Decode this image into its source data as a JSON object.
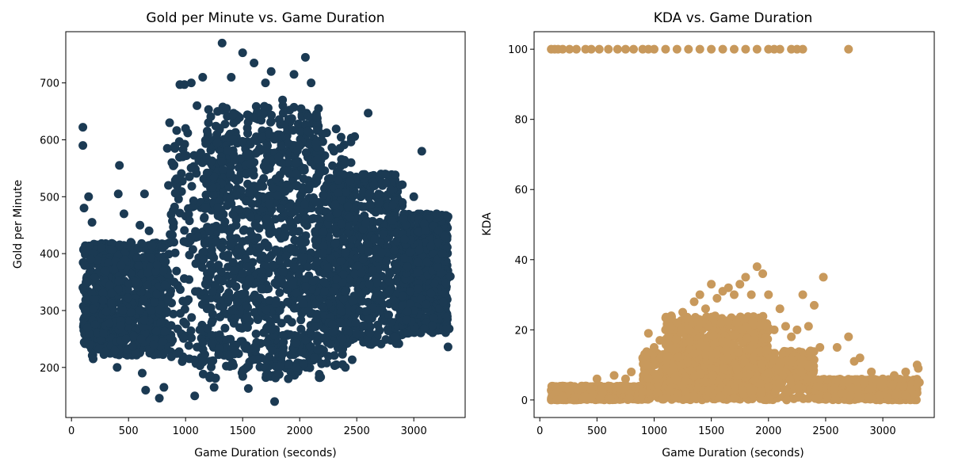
{
  "chart_data": [
    {
      "type": "scatter",
      "title": "Gold per Minute vs. Game Duration",
      "xlabel": "Game Duration (seconds)",
      "ylabel": "Gold per Minute",
      "xlim": [
        -50,
        3450
      ],
      "ylim": [
        112,
        790
      ],
      "xticks": [
        0,
        500,
        1000,
        1500,
        2000,
        2500,
        3000
      ],
      "yticks": [
        200,
        300,
        400,
        500,
        600,
        700
      ],
      "color": "#1b3a53",
      "grid": false,
      "series": [
        {
          "points": [
            [
              100,
              622
            ],
            [
              100,
              590
            ],
            [
              150,
              500
            ],
            [
              180,
              455
            ],
            [
              110,
              480
            ],
            [
              120,
              300
            ],
            [
              140,
              270
            ],
            [
              160,
              240
            ],
            [
              190,
              215
            ],
            [
              130,
              350
            ],
            [
              200,
              320
            ],
            [
              170,
              390
            ],
            [
              300,
              370
            ],
            [
              280,
              260
            ],
            [
              350,
              330
            ],
            [
              420,
              555
            ],
            [
              410,
              505
            ],
            [
              400,
              200
            ],
            [
              380,
              230
            ],
            [
              450,
              300
            ],
            [
              460,
              470
            ],
            [
              480,
              250
            ],
            [
              520,
              420
            ],
            [
              560,
              350
            ],
            [
              600,
              450
            ],
            [
              620,
              190
            ],
            [
              640,
              505
            ],
            [
              650,
              160
            ],
            [
              680,
              440
            ],
            [
              700,
              300
            ],
            [
              720,
              240
            ],
            [
              750,
              380
            ],
            [
              770,
              146
            ],
            [
              800,
              410
            ],
            [
              810,
              165
            ],
            [
              840,
              585
            ],
            [
              850,
              520
            ],
            [
              860,
              630
            ],
            [
              880,
              560
            ],
            [
              900,
              350
            ],
            [
              950,
              697
            ],
            [
              990,
              697
            ],
            [
              1000,
              620
            ],
            [
              1050,
              700
            ],
            [
              1080,
              150
            ],
            [
              1100,
              660
            ],
            [
              1150,
              710
            ],
            [
              1200,
              630
            ],
            [
              1250,
              165
            ],
            [
              1320,
              770
            ],
            [
              1400,
              710
            ],
            [
              1500,
              753
            ],
            [
              1550,
              163
            ],
            [
              1600,
              735
            ],
            [
              1700,
              700
            ],
            [
              1750,
              720
            ],
            [
              1780,
              140
            ],
            [
              1850,
              670
            ],
            [
              1900,
              180
            ],
            [
              1950,
              715
            ],
            [
              2050,
              745
            ],
            [
              2100,
              700
            ],
            [
              2150,
              640
            ],
            [
              2200,
              610
            ],
            [
              2300,
              580
            ],
            [
              2400,
              200
            ],
            [
              2450,
              560
            ],
            [
              2600,
              647
            ],
            [
              2650,
              520
            ],
            [
              2700,
              300
            ],
            [
              2750,
              540
            ],
            [
              2800,
              280
            ],
            [
              2900,
              490
            ],
            [
              2950,
              260
            ],
            [
              3000,
              500
            ],
            [
              3070,
              580
            ],
            [
              3100,
              440
            ],
            [
              3150,
              330
            ],
            [
              3200,
              470
            ],
            [
              3250,
              400
            ],
            [
              3300,
              236
            ],
            [
              3310,
              268
            ],
            [
              3320,
              360
            ],
            [
              3300,
              465
            ]
          ],
          "dense_regions": [
            {
              "x_range": [
                850,
                2500
              ],
              "y_range": [
                200,
                620
              ]
            },
            {
              "x_range": [
                1150,
                2200
              ],
              "y_range": [
                180,
                660
              ]
            },
            {
              "x_range": [
                2200,
                2900
              ],
              "y_range": [
                240,
                540
              ]
            },
            {
              "x_range": [
                2900,
                3300
              ],
              "y_range": [
                260,
                470
              ]
            },
            {
              "x_range": [
                100,
                850
              ],
              "y_range": [
                220,
                420
              ]
            }
          ]
        }
      ]
    },
    {
      "type": "scatter",
      "title": "KDA vs. Game Duration",
      "xlabel": "Game Duration (seconds)",
      "ylabel": "KDA",
      "xlim": [
        -50,
        3450
      ],
      "ylim": [
        -5,
        105
      ],
      "xticks": [
        0,
        500,
        1000,
        1500,
        2000,
        2500,
        3000
      ],
      "yticks": [
        0,
        20,
        40,
        60,
        80,
        100
      ],
      "color": "#c8995c",
      "grid": false,
      "series": [
        {
          "points": [
            [
              100,
              100
            ],
            [
              130,
              100
            ],
            [
              160,
              100
            ],
            [
              200,
              100
            ],
            [
              260,
              100
            ],
            [
              320,
              100
            ],
            [
              400,
              100
            ],
            [
              450,
              100
            ],
            [
              520,
              100
            ],
            [
              600,
              100
            ],
            [
              680,
              100
            ],
            [
              750,
              100
            ],
            [
              820,
              100
            ],
            [
              900,
              100
            ],
            [
              950,
              100
            ],
            [
              1000,
              100
            ],
            [
              1100,
              100
            ],
            [
              1200,
              100
            ],
            [
              1300,
              100
            ],
            [
              1400,
              100
            ],
            [
              1500,
              100
            ],
            [
              1600,
              100
            ],
            [
              1700,
              100
            ],
            [
              1800,
              100
            ],
            [
              1900,
              100
            ],
            [
              2000,
              100
            ],
            [
              2050,
              100
            ],
            [
              2100,
              100
            ],
            [
              2200,
              100
            ],
            [
              2250,
              100
            ],
            [
              2300,
              100
            ],
            [
              2700,
              100
            ],
            [
              100,
              0
            ],
            [
              120,
              1
            ],
            [
              150,
              0
            ],
            [
              200,
              1
            ],
            [
              300,
              0
            ],
            [
              400,
              1
            ],
            [
              450,
              3
            ],
            [
              500,
              6
            ],
            [
              550,
              2
            ],
            [
              600,
              4
            ],
            [
              650,
              7
            ],
            [
              700,
              3
            ],
            [
              750,
              6
            ],
            [
              800,
              8
            ],
            [
              900,
              12
            ],
            [
              950,
              19
            ],
            [
              1000,
              15
            ],
            [
              1050,
              17
            ],
            [
              1100,
              20
            ],
            [
              1150,
              24
            ],
            [
              1200,
              22
            ],
            [
              1250,
              25
            ],
            [
              1300,
              20
            ],
            [
              1350,
              28
            ],
            [
              1400,
              30
            ],
            [
              1450,
              26
            ],
            [
              1500,
              33
            ],
            [
              1550,
              29
            ],
            [
              1600,
              31
            ],
            [
              1650,
              32
            ],
            [
              1700,
              30
            ],
            [
              1750,
              33
            ],
            [
              1800,
              35
            ],
            [
              1850,
              30
            ],
            [
              1900,
              38
            ],
            [
              1950,
              36
            ],
            [
              2000,
              30
            ],
            [
              2050,
              20
            ],
            [
              2100,
              26
            ],
            [
              2150,
              21
            ],
            [
              2200,
              18
            ],
            [
              2250,
              20
            ],
            [
              2300,
              30
            ],
            [
              2350,
              21
            ],
            [
              2400,
              27
            ],
            [
              2450,
              15
            ],
            [
              2480,
              35
            ],
            [
              2600,
              15
            ],
            [
              2700,
              18
            ],
            [
              2750,
              11
            ],
            [
              2800,
              12
            ],
            [
              2900,
              8
            ],
            [
              3000,
              6
            ],
            [
              3100,
              7
            ],
            [
              3200,
              8
            ],
            [
              3300,
              10
            ],
            [
              3310,
              9
            ],
            [
              3320,
              5
            ],
            [
              3300,
              2
            ],
            [
              3250,
              3
            ]
          ],
          "dense_regions": [
            {
              "x_range": [
                900,
                2400
              ],
              "y_range": [
                0,
                14
              ]
            },
            {
              "x_range": [
                1100,
                2000
              ],
              "y_range": [
                0,
                24
              ]
            },
            {
              "x_range": [
                2400,
                3300
              ],
              "y_range": [
                0,
                6
              ]
            },
            {
              "x_range": [
                100,
                900
              ],
              "y_range": [
                0,
                4
              ]
            }
          ]
        }
      ]
    }
  ]
}
